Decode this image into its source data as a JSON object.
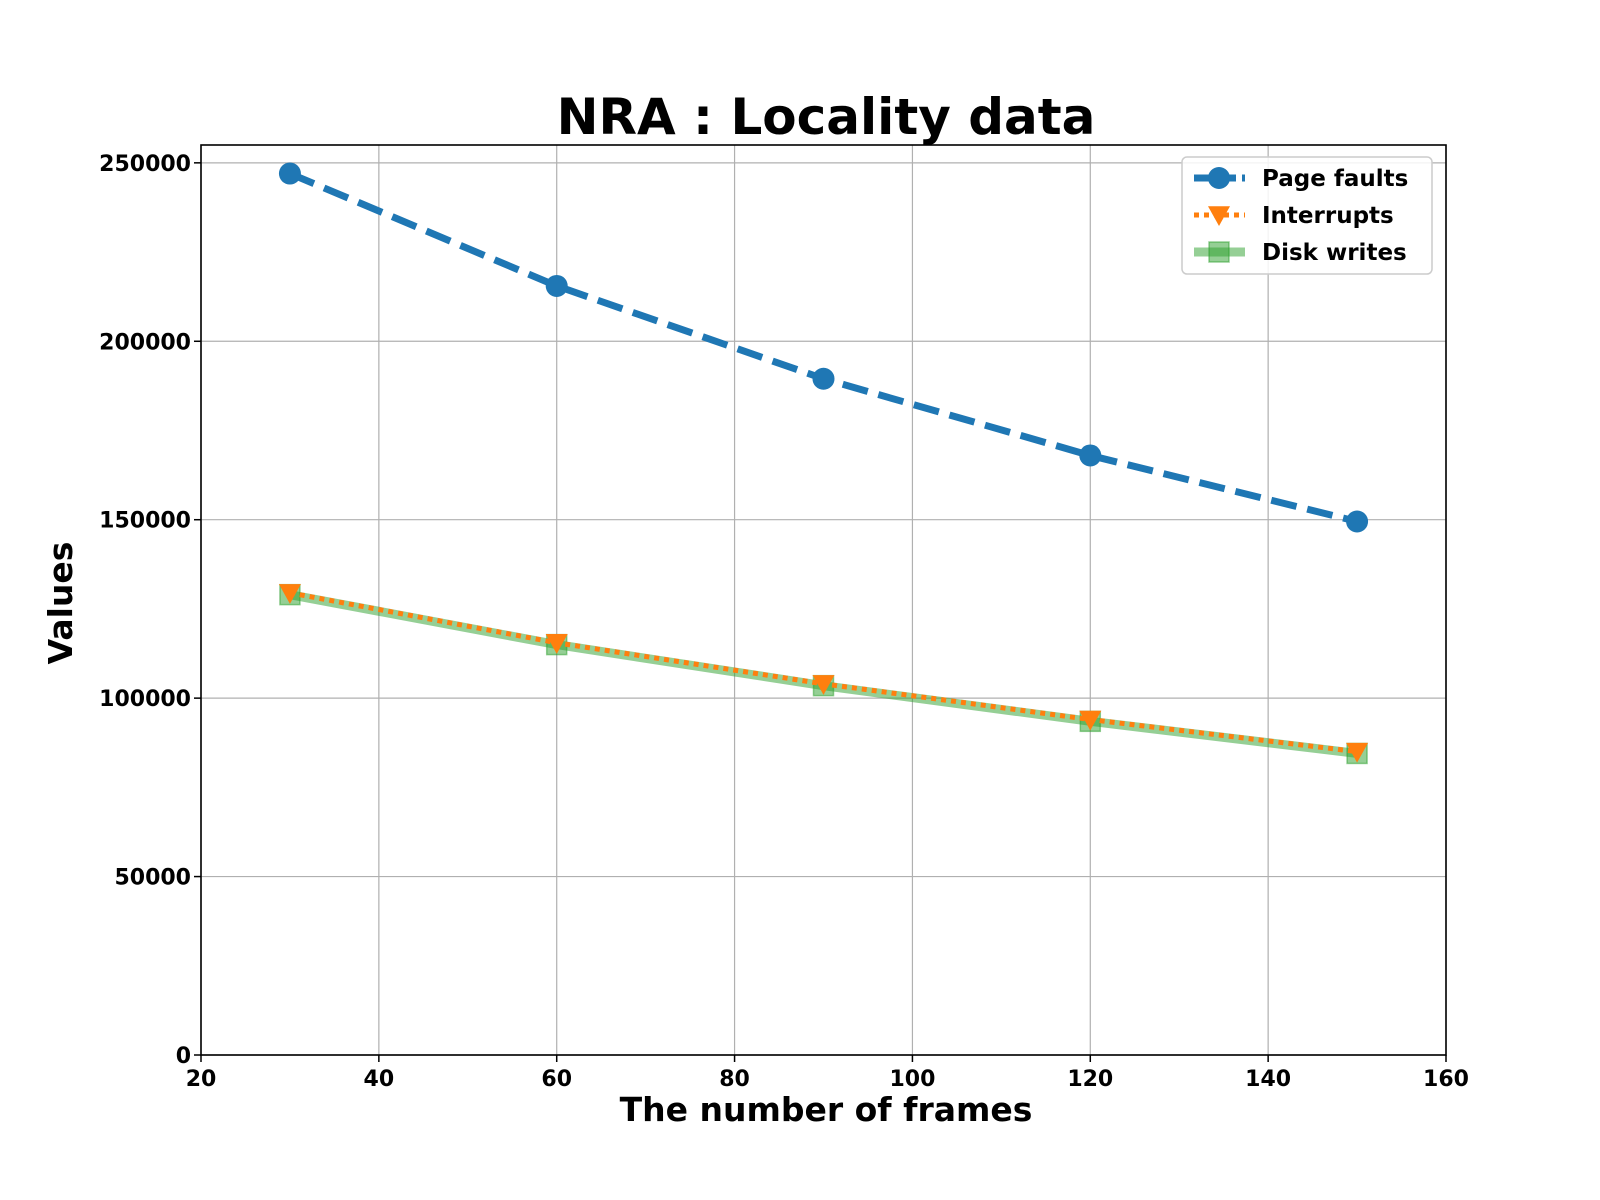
{
  "chart_data": {
    "type": "line",
    "title": "NRA : Locality data",
    "xlabel": "The number of frames",
    "ylabel": "Values",
    "xlim": [
      20,
      160
    ],
    "ylim": [
      0,
      255000
    ],
    "xticks": [
      20,
      40,
      60,
      80,
      100,
      120,
      140,
      160
    ],
    "yticks": [
      0,
      50000,
      100000,
      150000,
      200000,
      250000
    ],
    "x": [
      30,
      60,
      90,
      120,
      150
    ],
    "grid": true,
    "legend_position": "top-right",
    "series": [
      {
        "name": "Page faults",
        "values": [
          247000,
          215500,
          189500,
          168000,
          149500
        ],
        "color": "#1f77b4",
        "line_style": "dashed",
        "marker": "circle"
      },
      {
        "name": "Interrupts",
        "values": [
          129500,
          115500,
          104000,
          94000,
          85000
        ],
        "color": "#ff7f0e",
        "line_style": "dotted",
        "marker": "triangle-down"
      },
      {
        "name": "Disk writes",
        "values": [
          129000,
          115000,
          103500,
          93500,
          84500
        ],
        "color": "#2ca02c",
        "line_style": "solid-translucent",
        "marker": "square"
      }
    ]
  }
}
